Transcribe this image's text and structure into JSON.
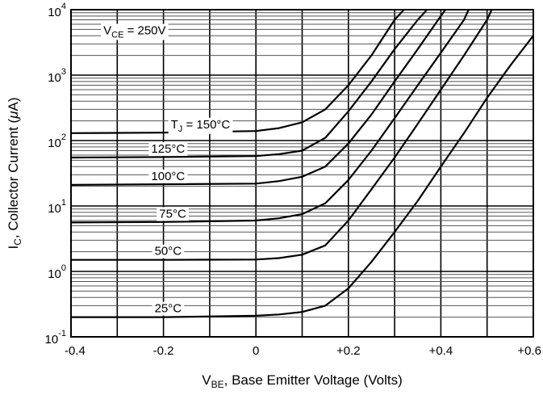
{
  "chart_data": {
    "type": "line",
    "title": "",
    "xlabel": {
      "main": "V",
      "sub": "BE",
      "rest": ", Base Emitter Voltage (Volts)"
    },
    "ylabel": {
      "main": "I",
      "sub": "C",
      "rest": ", Collector Current (",
      "mu": "μ",
      "unit": "A)"
    },
    "x_ticks": [
      {
        "v": -0.4,
        "label": "-0.4"
      },
      {
        "v": -0.2,
        "label": "-0.2"
      },
      {
        "v": 0.0,
        "label": "0"
      },
      {
        "v": 0.2,
        "label": "+0.2"
      },
      {
        "v": 0.4,
        "label": "+0.4"
      },
      {
        "v": 0.6,
        "label": "+0.6"
      }
    ],
    "y_ticks": [
      {
        "exp": -1,
        "base": "10",
        "sup": "-1"
      },
      {
        "exp": 0,
        "base": "10",
        "sup": "0"
      },
      {
        "exp": 1,
        "base": "10",
        "sup": "1"
      },
      {
        "exp": 2,
        "base": "10",
        "sup": "2"
      },
      {
        "exp": 3,
        "base": "10",
        "sup": "3"
      },
      {
        "exp": 4,
        "base": "10",
        "sup": "4"
      }
    ],
    "xlim": [
      -0.4,
      0.6
    ],
    "ylim": [
      0.1,
      10000
    ],
    "y_scale": "log",
    "grid": true,
    "condition": {
      "main": "V",
      "sub": "CE",
      "rest": " = 250V"
    },
    "series": [
      {
        "name": "T_J = 150°C",
        "label": {
          "pre": "T",
          "sub": "J",
          "rest": " = 150°C"
        },
        "points": [
          [
            -0.4,
            130
          ],
          [
            -0.2,
            132
          ],
          [
            0.0,
            140
          ],
          [
            0.05,
            155
          ],
          [
            0.1,
            190
          ],
          [
            0.15,
            300
          ],
          [
            0.2,
            700
          ],
          [
            0.25,
            2000
          ],
          [
            0.3,
            7000
          ],
          [
            0.32,
            10000
          ]
        ]
      },
      {
        "name": "125°C",
        "label": {
          "pre": "125°C",
          "sub": "",
          "rest": ""
        },
        "points": [
          [
            -0.4,
            55
          ],
          [
            -0.2,
            56
          ],
          [
            0.0,
            58
          ],
          [
            0.05,
            62
          ],
          [
            0.1,
            70
          ],
          [
            0.15,
            110
          ],
          [
            0.2,
            280
          ],
          [
            0.25,
            800
          ],
          [
            0.3,
            2500
          ],
          [
            0.35,
            7000
          ],
          [
            0.37,
            10000
          ]
        ]
      },
      {
        "name": "100°C",
        "label": {
          "pre": "100°C",
          "sub": "",
          "rest": ""
        },
        "points": [
          [
            -0.4,
            21
          ],
          [
            -0.2,
            21.5
          ],
          [
            0.0,
            22
          ],
          [
            0.05,
            24
          ],
          [
            0.1,
            28
          ],
          [
            0.15,
            40
          ],
          [
            0.2,
            90
          ],
          [
            0.25,
            250
          ],
          [
            0.3,
            800
          ],
          [
            0.35,
            2500
          ],
          [
            0.4,
            8000
          ],
          [
            0.41,
            10000
          ]
        ]
      },
      {
        "name": "75°C",
        "label": {
          "pre": "75°C",
          "sub": "",
          "rest": ""
        },
        "points": [
          [
            -0.4,
            5.6
          ],
          [
            -0.2,
            5.7
          ],
          [
            0.0,
            6.0
          ],
          [
            0.05,
            6.5
          ],
          [
            0.1,
            7.5
          ],
          [
            0.15,
            11
          ],
          [
            0.2,
            25
          ],
          [
            0.25,
            70
          ],
          [
            0.3,
            220
          ],
          [
            0.35,
            700
          ],
          [
            0.4,
            2200
          ],
          [
            0.45,
            7000
          ],
          [
            0.46,
            10000
          ]
        ]
      },
      {
        "name": "50°C",
        "label": {
          "pre": "50°C",
          "sub": "",
          "rest": ""
        },
        "points": [
          [
            -0.4,
            1.5
          ],
          [
            -0.2,
            1.5
          ],
          [
            0.0,
            1.52
          ],
          [
            0.05,
            1.6
          ],
          [
            0.1,
            1.8
          ],
          [
            0.15,
            2.5
          ],
          [
            0.2,
            6
          ],
          [
            0.25,
            18
          ],
          [
            0.3,
            55
          ],
          [
            0.35,
            180
          ],
          [
            0.4,
            600
          ],
          [
            0.45,
            2000
          ],
          [
            0.5,
            7000
          ],
          [
            0.51,
            10000
          ]
        ]
      },
      {
        "name": "25°C",
        "label": {
          "pre": "25°C",
          "sub": "",
          "rest": ""
        },
        "points": [
          [
            -0.4,
            0.2
          ],
          [
            -0.2,
            0.2
          ],
          [
            0.0,
            0.21
          ],
          [
            0.05,
            0.22
          ],
          [
            0.1,
            0.24
          ],
          [
            0.15,
            0.3
          ],
          [
            0.2,
            0.55
          ],
          [
            0.25,
            1.4
          ],
          [
            0.3,
            4
          ],
          [
            0.35,
            12
          ],
          [
            0.4,
            40
          ],
          [
            0.45,
            130
          ],
          [
            0.5,
            450
          ],
          [
            0.55,
            1400
          ],
          [
            0.6,
            4000
          ]
        ]
      }
    ]
  }
}
